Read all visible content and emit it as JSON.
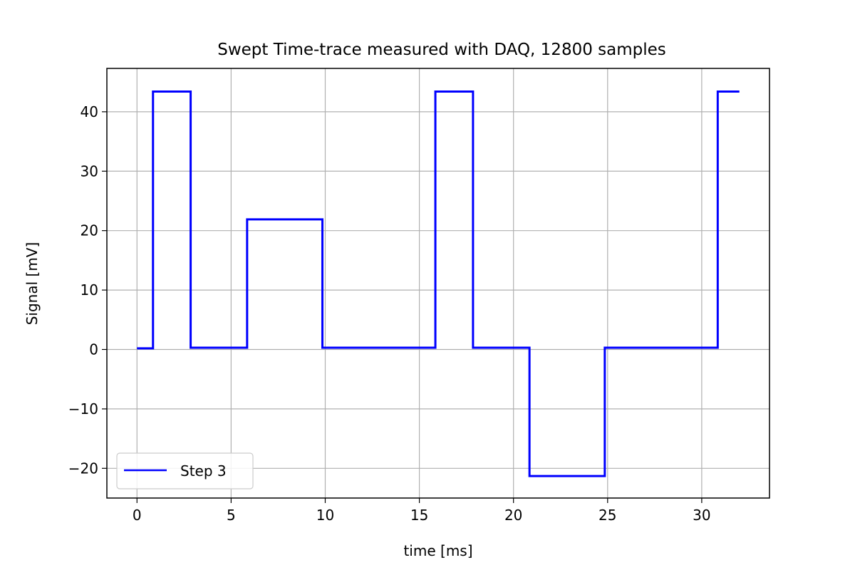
{
  "chart_data": {
    "type": "line",
    "title": "Swept Time-trace measured with DAQ,  12800 samples",
    "xlabel": "time  [ms]",
    "ylabel": "Signal  [mV]",
    "xlim": [
      -1.6,
      33.6
    ],
    "ylim": [
      -25,
      47.3
    ],
    "xticks": [
      0,
      5,
      10,
      15,
      20,
      25,
      30
    ],
    "yticks": [
      -20,
      -10,
      0,
      10,
      20,
      30,
      40
    ],
    "xtick_labels": [
      "0",
      "5",
      "10",
      "15",
      "20",
      "25",
      "30"
    ],
    "ytick_labels": [
      "−20",
      "−10",
      "0",
      "10",
      "20",
      "30",
      "40"
    ],
    "grid": true,
    "legend": {
      "placement": "lower-left"
    },
    "series": [
      {
        "name": "Step 3",
        "color": "#0000ff",
        "x": [
          0,
          0.85,
          0.85,
          2.85,
          2.85,
          5.85,
          5.85,
          9.85,
          9.85,
          15.85,
          15.85,
          17.85,
          17.85,
          20.85,
          20.85,
          24.85,
          24.85,
          30.85,
          30.85,
          32.0
        ],
        "y": [
          0.2,
          0.2,
          43.4,
          43.4,
          0.3,
          0.3,
          21.9,
          21.9,
          0.3,
          0.3,
          43.4,
          43.4,
          0.3,
          0.3,
          -21.3,
          -21.3,
          0.3,
          0.3,
          43.4,
          43.4
        ]
      }
    ]
  }
}
